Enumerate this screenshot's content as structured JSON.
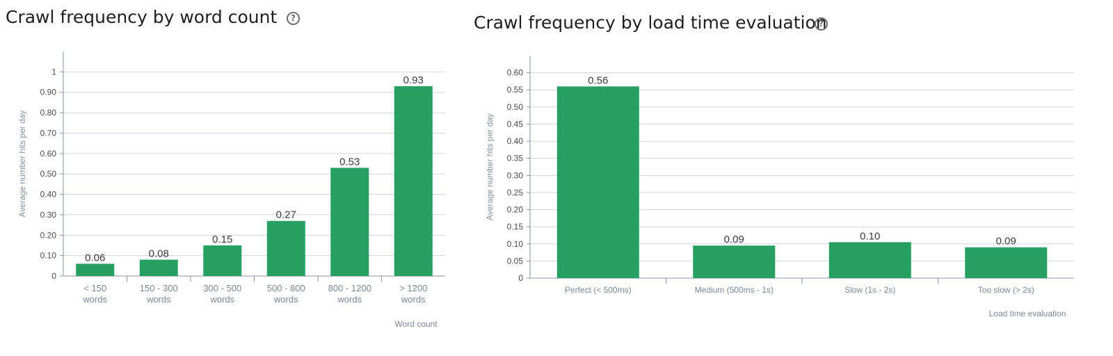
{
  "help_icon_glyph": "?",
  "chart_data": [
    {
      "type": "bar",
      "title": "Crawl frequency by word count",
      "xlabel": "Word count",
      "ylabel": "Average number hits per day",
      "categories": [
        [
          "< 150",
          "words"
        ],
        [
          "150 - 300",
          "words"
        ],
        [
          "300 - 500",
          "words"
        ],
        [
          "500 - 800",
          "words"
        ],
        [
          "800 - 1200",
          "words"
        ],
        [
          "> 1200",
          "words"
        ]
      ],
      "values": [
        0.06,
        0.08,
        0.15,
        0.27,
        0.53,
        0.93
      ],
      "value_labels": [
        "0.06",
        "0.08",
        "0.15",
        "0.27",
        "0.53",
        "0.93"
      ],
      "ylim": [
        0,
        1.1
      ],
      "yticks": [
        0,
        0.1,
        0.2,
        0.3,
        0.4,
        0.5,
        0.6,
        0.7,
        0.8,
        0.9,
        1
      ],
      "ytick_labels": [
        "0",
        "0.10",
        "0.20",
        "0.30",
        "0.40",
        "0.50",
        "0.60",
        "0.70",
        "0.80",
        "0.90",
        "1"
      ],
      "grid": true,
      "bar_color": "#25a060"
    },
    {
      "type": "bar",
      "title": "Crawl frequency by load time evaluation",
      "xlabel": "Load time evaluation",
      "ylabel": "Average number hits per day",
      "categories": [
        [
          "Perfect (< 500ms)"
        ],
        [
          "Medium (500ms - 1s)"
        ],
        [
          "Slow (1s - 2s)"
        ],
        [
          "Too slow (> 2s)"
        ]
      ],
      "values": [
        0.56,
        0.095,
        0.105,
        0.09
      ],
      "value_labels": [
        "0.56",
        "0.09",
        "0.10",
        "0.09"
      ],
      "ylim": [
        0,
        0.65
      ],
      "yticks": [
        0,
        0.05,
        0.1,
        0.15,
        0.2,
        0.25,
        0.3,
        0.35,
        0.4,
        0.45,
        0.5,
        0.55,
        0.6
      ],
      "ytick_labels": [
        "0",
        "0.05",
        "0.10",
        "0.15",
        "0.20",
        "0.25",
        "0.30",
        "0.35",
        "0.40",
        "0.45",
        "0.50",
        "0.55",
        "0.60"
      ],
      "grid": true,
      "bar_color": "#25a060"
    }
  ]
}
